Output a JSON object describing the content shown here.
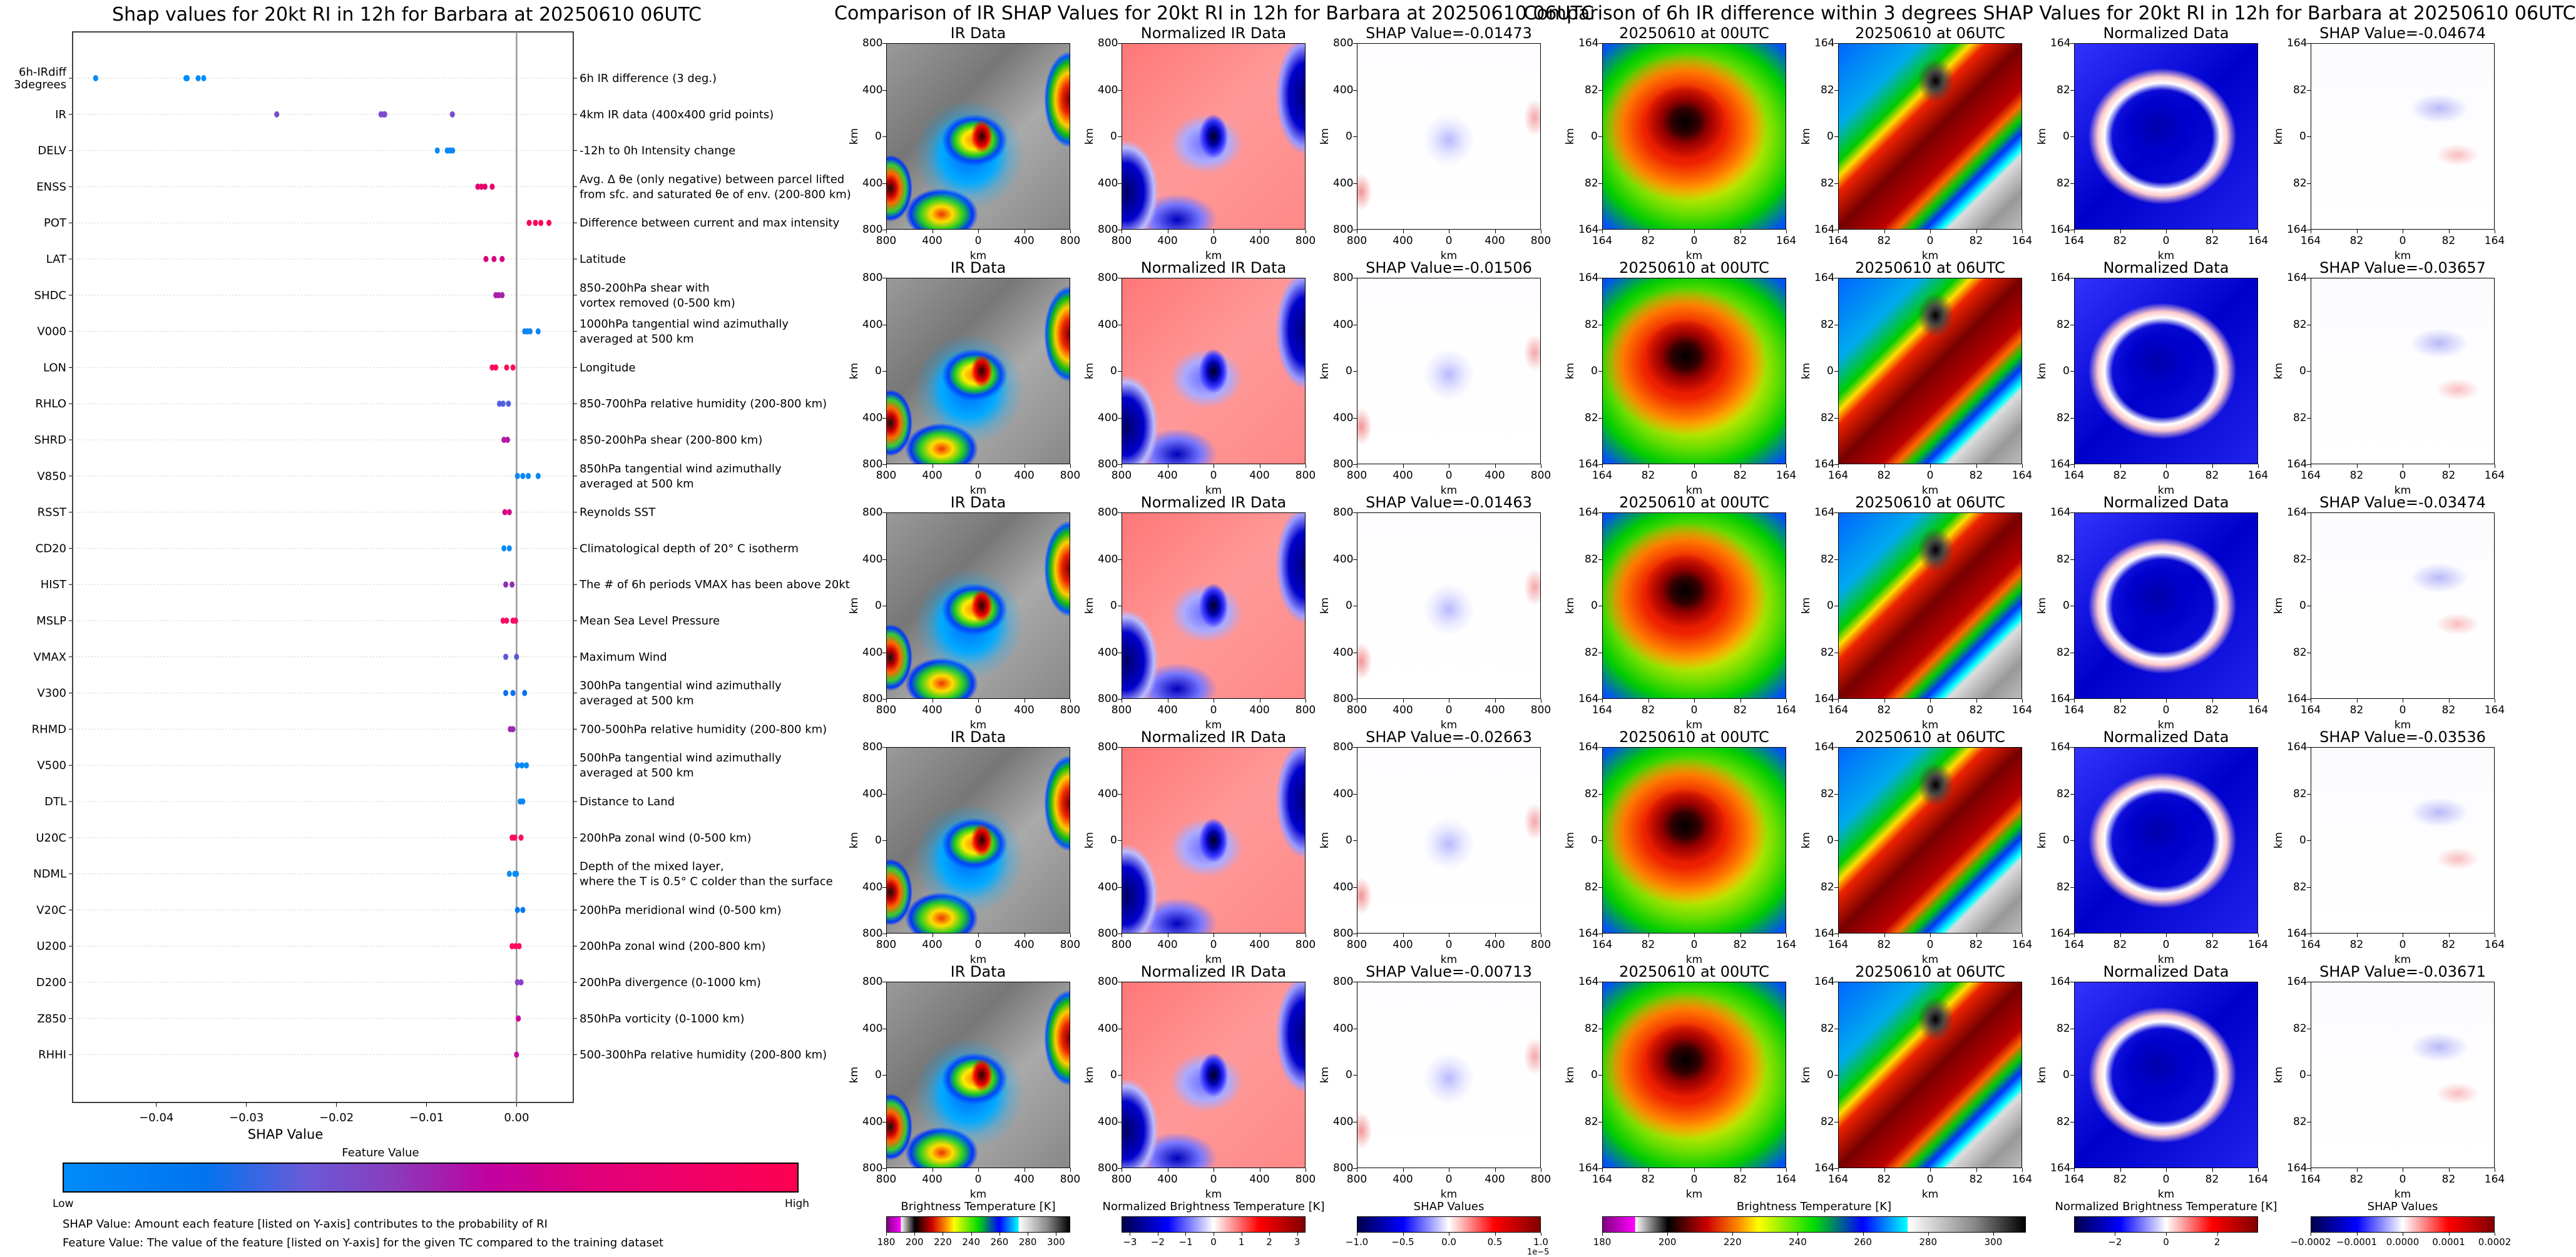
{
  "shap_plot": {
    "title": "Shap values for 20kt RI in 12h for Barbara at 20250610 06UTC",
    "colorbar_title": "Feature Value",
    "colorbar_low": "Low",
    "colorbar_high": "High",
    "note_shap": "SHAP Value: Amount each feature [listed on Y-axis] contributes to the probability of RI",
    "note_feature": "Feature Value: The value of the feature [listed on Y-axis] for the given TC compared to the training dataset"
  },
  "chart_data": [
    {
      "type": "scatter",
      "title": "Shap values for 20kt RI in 12h for Barbara at 20250610 06UTC",
      "xlabel": "SHAP Value",
      "xlim": [
        -0.0493,
        0.0063
      ],
      "xticks": [
        "-0.04",
        "-0.03",
        "-0.02",
        "-0.01",
        "0.00"
      ],
      "xtick_values": [
        -0.04,
        -0.03,
        -0.02,
        -0.01,
        0.0
      ],
      "grid": "dotted horizontal",
      "features": [
        {
          "name": "6h-IRdiff",
          "name2": "3degrees",
          "desc": "6h IR difference (3 deg.)",
          "color": "#008bfa",
          "values": [
            -0.04674,
            -0.03671,
            -0.03657,
            -0.03536,
            -0.03474
          ]
        },
        {
          "name": "IR",
          "desc": "4km IR data (400x400 grid points)",
          "color": "#7a4ccc",
          "values": [
            -0.02663,
            -0.01506,
            -0.01473,
            -0.01463,
            -0.00713
          ]
        },
        {
          "name": "DELV",
          "desc": "-12h to 0h Intensity change",
          "color": "#0a88f5",
          "values": [
            -0.0088,
            -0.0077,
            -0.0074,
            -0.0071
          ]
        },
        {
          "name": "ENSS",
          "desc": "Avg. Δ θe (only negative) between parcel lifted",
          "desc2": "from sfc. and saturated θe of env. (200-800 km)",
          "color": "#e4006e",
          "values": [
            -0.0043,
            -0.0039,
            -0.0035,
            -0.0027
          ]
        },
        {
          "name": "POT",
          "desc": "Difference between current and max intensity",
          "color": "#ff0055",
          "values": [
            0.0014,
            0.0021,
            0.0027,
            0.0036
          ]
        },
        {
          "name": "LAT",
          "desc": "Latitude",
          "color": "#d6007f",
          "values": [
            -0.0034,
            -0.0025,
            -0.0016
          ]
        },
        {
          "name": "SHDC",
          "desc": "850-200hPa shear with",
          "desc2": "vortex removed (0-500 km)",
          "color": "#aa20a8",
          "values": [
            -0.0023,
            -0.002,
            -0.0016
          ]
        },
        {
          "name": "V000",
          "desc": "1000hPa tangential wind azimuthally",
          "desc2": "averaged at 500 km",
          "color": "#0a84f8",
          "values": [
            0.0009,
            0.0012,
            0.0015,
            0.0024
          ]
        },
        {
          "name": "LON",
          "desc": "Longitude",
          "color": "#ff0a52",
          "values": [
            -0.0027,
            -0.0023,
            -0.0011,
            -0.0004
          ]
        },
        {
          "name": "RHLO",
          "desc": "850-700hPa relative humidity (200-800 km)",
          "color": "#5060e0",
          "values": [
            -0.0019,
            -0.0015,
            -0.0009
          ]
        },
        {
          "name": "SHRD",
          "desc": "850-200hPa shear (200-800 km)",
          "color": "#b01aa6",
          "values": [
            -0.0014,
            -0.001
          ]
        },
        {
          "name": "V850",
          "desc": "850hPa tangential wind azimuthally",
          "desc2": "averaged at 500 km",
          "color": "#0a88f5",
          "values": [
            0.0001,
            0.0007,
            0.0013,
            0.0024
          ]
        },
        {
          "name": "RSST",
          "desc": "Reynolds SST",
          "color": "#d80a86",
          "values": [
            -0.0013,
            -0.0008
          ]
        },
        {
          "name": "CD20",
          "desc": "Climatological depth of 20° C isotherm",
          "color": "#0a8af5",
          "values": [
            -0.0014,
            -0.0008
          ]
        },
        {
          "name": "HIST",
          "desc": "The # of 6h periods VMAX has been above 20kt",
          "color": "#8e30b8",
          "values": [
            -0.0012,
            -0.0005
          ]
        },
        {
          "name": "MSLP",
          "desc": "Mean Sea Level Pressure",
          "color": "#ff0a68",
          "values": [
            -0.0015,
            -0.0011,
            -0.0004,
            -0.0001
          ]
        },
        {
          "name": "VMAX",
          "desc": "Maximum Wind",
          "color": "#5a5ad8",
          "values": [
            -0.0012,
            0.0
          ]
        },
        {
          "name": "V300",
          "desc": "300hPa tangential wind azimuthally",
          "desc2": "averaged at 500 km",
          "color": "#0a70f0",
          "values": [
            -0.0012,
            -0.0004,
            0.0009
          ]
        },
        {
          "name": "RHMD",
          "desc": "700-500hPa relative humidity (200-800 km)",
          "color": "#9a2ab2",
          "values": [
            -0.0007,
            -0.0004
          ]
        },
        {
          "name": "V500",
          "desc": "500hPa tangential wind azimuthally",
          "desc2": "averaged at 500 km",
          "color": "#0a88f5",
          "values": [
            0.0001,
            0.0006,
            0.0011
          ]
        },
        {
          "name": "DTL",
          "desc": "Distance to Land",
          "color": "#0a88f0",
          "values": [
            0.0004,
            0.0007
          ]
        },
        {
          "name": "U20C",
          "desc": "200hPa zonal wind (0-500 km)",
          "color": "#ff0a60",
          "values": [
            -0.0005,
            -0.0002,
            0.0005
          ]
        },
        {
          "name": "NDML",
          "desc": "Depth of the mixed layer,",
          "desc2": "where the T is 0.5° C colder than the surface",
          "color": "#0a8cf5",
          "values": [
            -0.0008,
            -0.0002,
            0.0
          ]
        },
        {
          "name": "V20C",
          "desc": "200hPa meridional wind (0-500 km)",
          "color": "#0a78f0",
          "values": [
            0.0001,
            0.0007
          ]
        },
        {
          "name": "U200",
          "desc": "200hPa zonal wind (200-800 km)",
          "color": "#ff0a60",
          "values": [
            -0.0005,
            -0.0001,
            0.0003
          ]
        },
        {
          "name": "D200",
          "desc": "200hPa divergence (0-1000 km)",
          "color": "#8a40c8",
          "values": [
            0.0001,
            0.0005
          ]
        },
        {
          "name": "Z850",
          "desc": "850hPa vorticity (0-1000 km)",
          "color": "#d000a0",
          "values": [
            0.0002
          ]
        },
        {
          "name": "RHHI",
          "desc": "500-300hPa relative humidity (200-800 km)",
          "color": "#c010a8",
          "values": [
            0.0
          ]
        }
      ]
    }
  ],
  "ir_comparison": {
    "title": "Comparison of IR SHAP Values for 20kt RI in 12h for Barbara at 20250610 06UTC",
    "col_titles": [
      "IR Data",
      "Normalized IR Data"
    ],
    "shap_prefix": "SHAP Value=",
    "shap_values": [
      "-0.01473",
      "-0.01506",
      "-0.01463",
      "-0.02663",
      "-0.00713"
    ],
    "ticks": [
      "800",
      "400",
      "0",
      "400",
      "800"
    ],
    "axis_label": "km",
    "colorbars": [
      {
        "title": "Brightness Temperature [K]",
        "ticks": [
          "180",
          "200",
          "220",
          "240",
          "260",
          "280",
          "300"
        ],
        "tick_values": [
          180,
          200,
          220,
          240,
          260,
          280,
          300
        ],
        "range": [
          180,
          310
        ]
      },
      {
        "title": "Normalized Brightness Temperature [K]",
        "ticks": [
          "−3",
          "−2",
          "−1",
          "0",
          "1",
          "2",
          "3"
        ],
        "tick_values": [
          -3,
          -2,
          -1,
          0,
          1,
          2,
          3
        ],
        "range": [
          -3.3,
          3.3
        ]
      },
      {
        "title": "SHAP Values",
        "ticks": [
          "−1.0",
          "−0.5",
          "0.0",
          "0.5",
          "1.0"
        ],
        "tick_values": [
          -1,
          -0.5,
          0,
          0.5,
          1
        ],
        "range": [
          -1,
          1
        ],
        "offset": "1e−5"
      }
    ]
  },
  "irdiff_comparison": {
    "title": "Comparison of 6h IR difference within 3 degrees SHAP Values for 20kt RI in 12h for Barbara at 20250610 06UTC",
    "col_titles": [
      "20250610 at 00UTC",
      "20250610 at 06UTC",
      "Normalized Data"
    ],
    "shap_prefix": "SHAP Value=",
    "shap_values": [
      "-0.04674",
      "-0.03657",
      "-0.03474",
      "-0.03536",
      "-0.03671"
    ],
    "ticks": [
      "164",
      "82",
      "0",
      "82",
      "164"
    ],
    "axis_label": "km",
    "colorbars": [
      {
        "title": "Brightness Temperature [K]",
        "ticks": [
          "180",
          "200",
          "220",
          "240",
          "260",
          "280",
          "300"
        ],
        "tick_values": [
          180,
          200,
          220,
          240,
          260,
          280,
          300
        ],
        "range": [
          180,
          310
        ]
      },
      {
        "title": "Normalized Brightness Temperature [K]",
        "ticks": [
          "−2",
          "0",
          "2"
        ],
        "tick_values": [
          -2,
          0,
          2
        ],
        "range": [
          -3.6,
          3.6
        ]
      },
      {
        "title": "SHAP Values",
        "ticks": [
          "−0.0002",
          "−0.0001",
          "0.0000",
          "0.0001",
          "0.0002"
        ],
        "tick_values": [
          -0.0002,
          -0.0001,
          0,
          0.0001,
          0.0002
        ],
        "range": [
          -0.0002,
          0.0002
        ]
      }
    ]
  }
}
